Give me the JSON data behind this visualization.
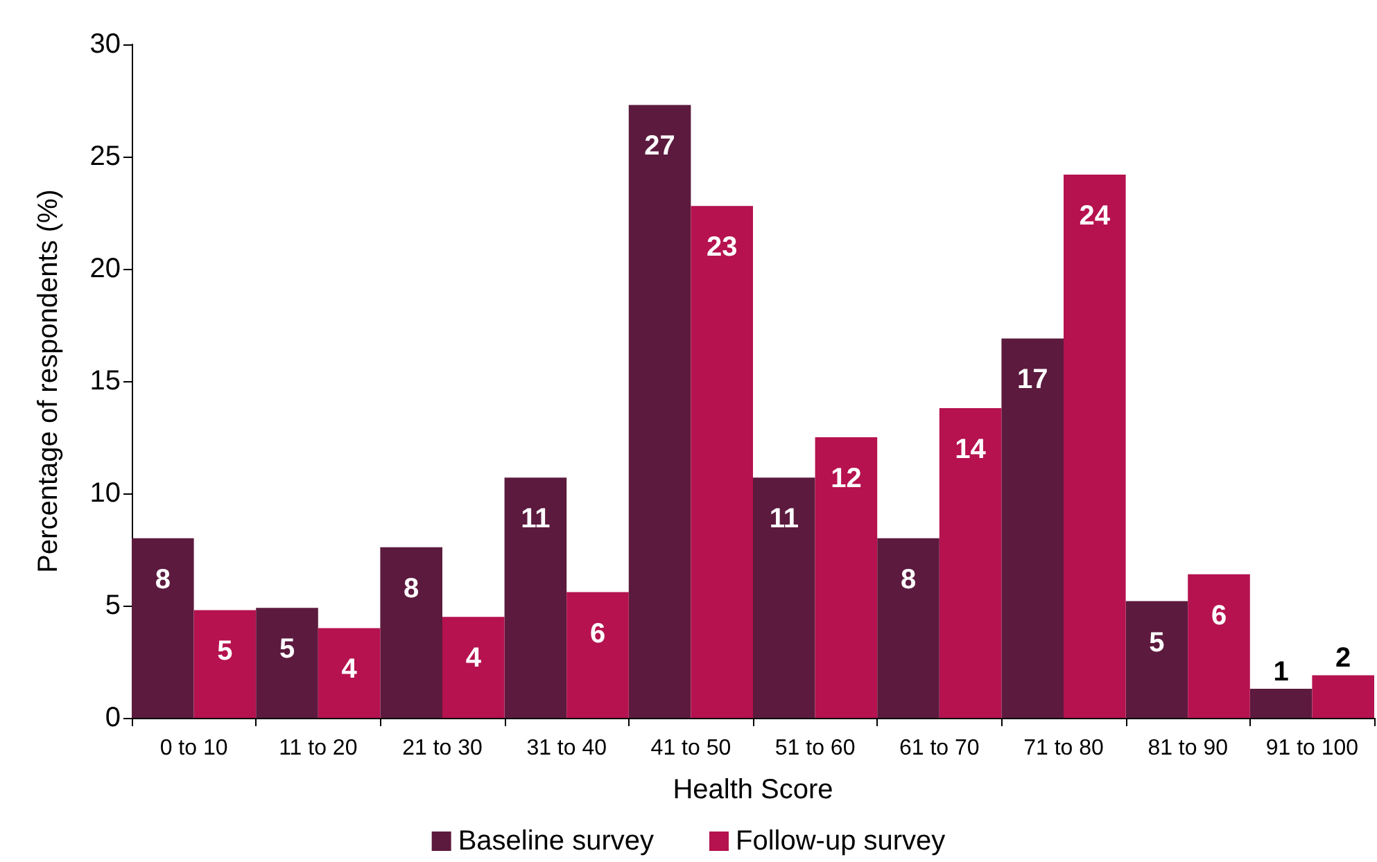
{
  "chart_data": {
    "type": "bar",
    "xlabel": "Health Score",
    "ylabel": "Percentage of respondents (%)",
    "categories": [
      "0 to 10",
      "11 to 20",
      "21 to 30",
      "31 to 40",
      "41 to 50",
      "51 to 60",
      "61 to 70",
      "71 to 80",
      "81 to 90",
      "91 to 100"
    ],
    "series": [
      {
        "name": "Baseline survey",
        "color": "#5c1a3e",
        "values": [
          8.0,
          4.9,
          7.6,
          10.7,
          27.3,
          10.7,
          8.0,
          16.9,
          5.2,
          1.3
        ],
        "value_labels": [
          "8",
          "5",
          "8",
          "11",
          "27",
          "11",
          "8",
          "17",
          "5",
          "1"
        ]
      },
      {
        "name": "Follow-up survey",
        "color": "#b5124f",
        "values": [
          4.8,
          4.0,
          4.5,
          5.6,
          22.8,
          12.5,
          13.8,
          24.2,
          6.4,
          1.9
        ],
        "value_labels": [
          "5",
          "4",
          "4",
          "6",
          "23",
          "12",
          "14",
          "24",
          "6",
          "2"
        ]
      }
    ],
    "ylim": [
      0,
      30
    ],
    "yticks": [
      0,
      5,
      10,
      15,
      20,
      25,
      30
    ],
    "grid": false,
    "legend": "bottom"
  }
}
